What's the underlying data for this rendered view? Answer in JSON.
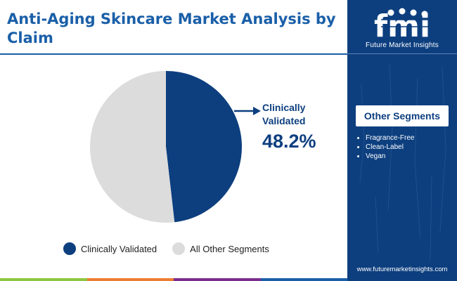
{
  "header": {
    "title": "Anti-Aging Skincare Market Analysis by Claim"
  },
  "brand": {
    "name": "Future Market Insights",
    "url": "www.futuremarketinsights.com"
  },
  "side_panel": {
    "heading": "Other Segments",
    "items": [
      "Fragrance-Free",
      "Clean-Label",
      "Vegan"
    ]
  },
  "colors": {
    "primary": "#0d3f7f",
    "accent": "#1a5fa8",
    "other": "#dcdcdc",
    "bar": [
      "#8dc63f",
      "#ed7d31",
      "#7b2d8e",
      "#1a5fa8"
    ]
  },
  "icons": [
    "fmi-logo-icon"
  ],
  "chart_data": {
    "type": "pie",
    "title": "Anti-Aging Skincare Market Analysis by Claim",
    "slices": [
      {
        "name": "Clinically Validated",
        "value": 48.2,
        "color": "#0d3f7f"
      },
      {
        "name": "All Other Segments",
        "value": 51.8,
        "color": "#dcdcdc"
      }
    ],
    "annotation": {
      "label_line1": "Clinically",
      "label_line2": "Validated",
      "value_text": "48.2%"
    },
    "legend": {
      "position": "bottom",
      "entries": [
        "Clinically Validated",
        "All Other Segments"
      ]
    }
  }
}
